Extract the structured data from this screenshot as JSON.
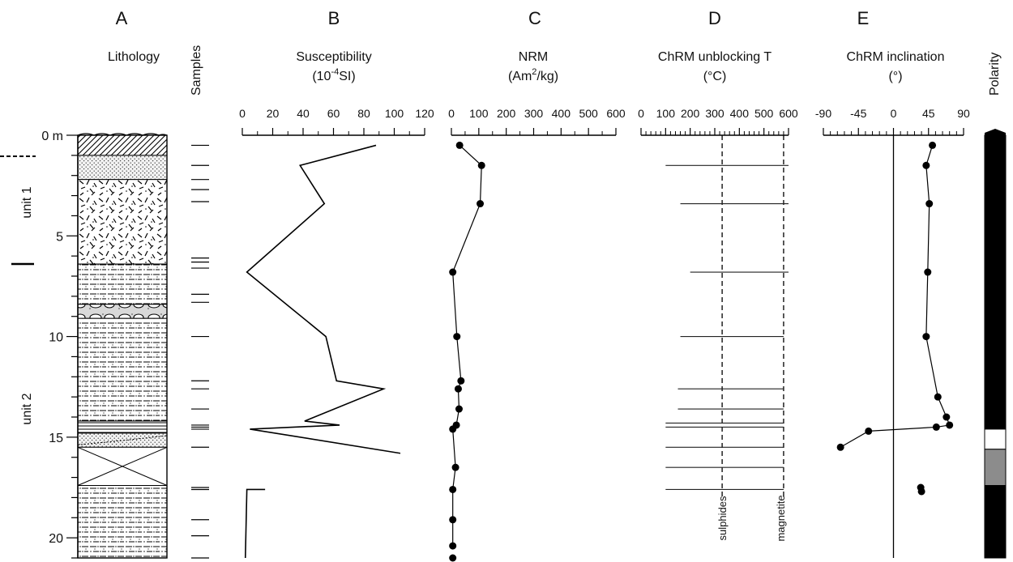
{
  "figure": {
    "panel_letters": [
      "A",
      "B",
      "C",
      "D",
      "E"
    ],
    "lithology_title": "Lithology",
    "samples_label": "Samples",
    "polarity_label": "Polarity",
    "depth_unit": "m",
    "units": [
      "unit 1",
      "unit 2"
    ],
    "susceptibility_title_line1": "Susceptibility",
    "susceptibility_title_base": "(10",
    "susceptibility_title_sup": "-4",
    "susceptibility_title_tail": "SI)",
    "nrm_title_line1": "NRM",
    "nrm_title_base": "(Am",
    "nrm_title_sup": "2",
    "nrm_title_tail": "/kg)",
    "unblocking_title_line1": "ChRM unblocking T",
    "unblocking_title_line2": "(°C)",
    "inclination_title_line1": "ChRM inclination",
    "inclination_title_line2": "(°)",
    "sulphides_label": "sulphides",
    "magnetite_label": "magnetite"
  },
  "chart_data": [
    {
      "type": "line",
      "panel": "B",
      "title": "Susceptibility (10-4SI)",
      "xlim": [
        0,
        120
      ],
      "xticks": [
        0,
        20,
        40,
        60,
        80,
        100,
        120
      ],
      "ylim": [
        0,
        21
      ],
      "series": [
        {
          "x": [
            88,
            38,
            54,
            3,
            55,
            62,
            93,
            41,
            64,
            5,
            104
          ],
          "y": [
            0.5,
            1.5,
            3.4,
            6.8,
            10.0,
            12.2,
            12.6,
            14.2,
            14.4,
            14.6,
            15.8
          ]
        },
        {
          "x": [
            15,
            3,
            2
          ],
          "y": [
            17.6,
            17.6,
            21.0
          ]
        }
      ]
    },
    {
      "type": "line",
      "panel": "C",
      "title": "NRM (Am2/kg)",
      "xlim": [
        0,
        600
      ],
      "xticks": [
        0,
        100,
        200,
        300,
        400,
        500,
        600
      ],
      "ylim": [
        0,
        21
      ],
      "series": [
        {
          "x": [
            30,
            110,
            105,
            5,
            20,
            35,
            25,
            28,
            18,
            5,
            15,
            5,
            5,
            5
          ],
          "y": [
            0.5,
            1.5,
            3.4,
            6.8,
            10.0,
            12.2,
            12.6,
            13.6,
            14.4,
            14.6,
            16.5,
            17.6,
            19.1,
            20.4
          ]
        },
        {
          "x": [
            5
          ],
          "y": [
            21.0
          ]
        }
      ]
    },
    {
      "type": "bar",
      "panel": "D",
      "title": "ChRM unblocking T (°C)",
      "xlim": [
        0,
        600
      ],
      "xticks": [
        0,
        100,
        200,
        300,
        400,
        500,
        600
      ],
      "ylim": [
        0,
        21
      ],
      "reference_lines": [
        {
          "label": "sulphides",
          "x": 330
        },
        {
          "label": "magnetite",
          "x": 580
        }
      ],
      "intervals": [
        {
          "y": 0.5,
          "from": 600,
          "to": 600
        },
        {
          "y": 1.5,
          "from": 100,
          "to": 600
        },
        {
          "y": 3.4,
          "from": 160,
          "to": 600
        },
        {
          "y": 6.8,
          "from": 200,
          "to": 600
        },
        {
          "y": 10.0,
          "from": 160,
          "to": 580
        },
        {
          "y": 12.6,
          "from": 150,
          "to": 580
        },
        {
          "y": 13.6,
          "from": 150,
          "to": 580
        },
        {
          "y": 14.3,
          "from": 100,
          "to": 580
        },
        {
          "y": 14.5,
          "from": 100,
          "to": 580
        },
        {
          "y": 15.5,
          "from": 100,
          "to": 580
        },
        {
          "y": 16.5,
          "from": 100,
          "to": 580
        },
        {
          "y": 17.6,
          "from": 100,
          "to": 580
        }
      ]
    },
    {
      "type": "scatter",
      "panel": "E",
      "title": "ChRM inclination (°)",
      "xlim": [
        -90,
        90
      ],
      "xticks": [
        -90,
        -45,
        0,
        45,
        90
      ],
      "ylim": [
        0,
        21
      ],
      "series": [
        {
          "x": [
            50,
            42,
            46,
            44,
            42,
            57,
            68,
            72,
            55,
            -32,
            -68
          ],
          "y": [
            0.5,
            1.5,
            3.4,
            6.8,
            10.0,
            13.0,
            14.0,
            14.4,
            14.5,
            14.7,
            15.5
          ]
        },
        {
          "x": [
            35,
            36
          ],
          "y": [
            17.5,
            17.7
          ]
        }
      ]
    },
    {
      "type": "table",
      "panel": "Polarity",
      "zones": [
        {
          "top": 0.0,
          "bottom": 14.6,
          "state": "normal",
          "color": "#000000"
        },
        {
          "top": 14.6,
          "bottom": 15.6,
          "state": "reversed",
          "color": "#ffffff"
        },
        {
          "top": 15.6,
          "bottom": 17.4,
          "state": "undetermined",
          "color": "#8c8c8c"
        },
        {
          "top": 17.4,
          "bottom": 21.0,
          "state": "normal",
          "color": "#000000"
        }
      ]
    },
    {
      "type": "table",
      "panel": "A",
      "title": "Lithology",
      "depth_ticks": [
        0,
        5,
        10,
        15,
        20
      ],
      "depth_tick_labels": [
        "0",
        "5",
        "10",
        "15",
        "20"
      ],
      "sample_depths": [
        0.5,
        1.5,
        2.2,
        2.7,
        3.3,
        6.1,
        6.3,
        6.6,
        7.9,
        8.3,
        10.0,
        12.2,
        12.6,
        13.6,
        14.4,
        14.5,
        14.6,
        15.5,
        17.5,
        17.6,
        19.1,
        19.9,
        21.0
      ],
      "layers": [
        {
          "top": 0.0,
          "bottom": 1.0,
          "type": "soil"
        },
        {
          "top": 1.0,
          "bottom": 2.2,
          "type": "sand"
        },
        {
          "top": 2.2,
          "bottom": 6.4,
          "type": "breccia"
        },
        {
          "top": 6.4,
          "bottom": 8.4,
          "type": "silt"
        },
        {
          "top": 8.4,
          "bottom": 9.1,
          "type": "gravel-lens"
        },
        {
          "top": 9.1,
          "bottom": 14.2,
          "type": "silt"
        },
        {
          "top": 14.2,
          "bottom": 14.8,
          "type": "laminated"
        },
        {
          "top": 14.8,
          "bottom": 15.5,
          "type": "sand"
        },
        {
          "top": 15.5,
          "bottom": 17.4,
          "type": "gap"
        },
        {
          "top": 17.4,
          "bottom": 21.0,
          "type": "silt"
        }
      ]
    }
  ]
}
